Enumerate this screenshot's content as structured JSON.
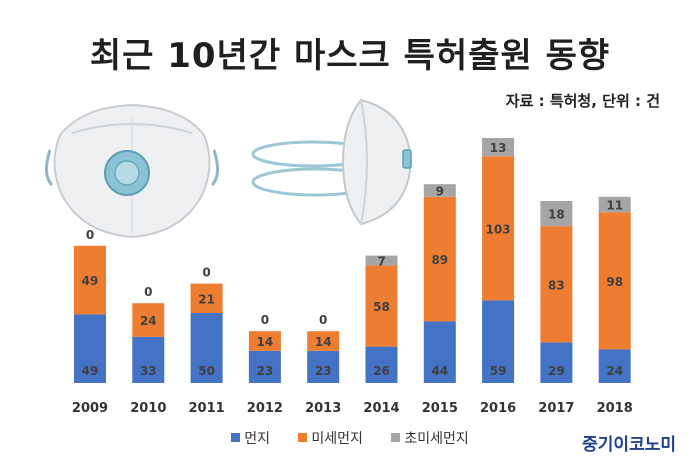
{
  "header": {
    "title": "최근 10년간 마스크 특허출원 동향",
    "source": "자료 : 특허청, 단위 : 건"
  },
  "brand": "중기이코노미",
  "chart_data": {
    "type": "bar",
    "stacked": true,
    "categories": [
      "2009",
      "2010",
      "2011",
      "2012",
      "2013",
      "2014",
      "2015",
      "2016",
      "2017",
      "2018"
    ],
    "series": [
      {
        "name": "먼지",
        "color": "#4472c4",
        "values": [
          49,
          33,
          50,
          23,
          23,
          26,
          44,
          59,
          29,
          24
        ]
      },
      {
        "name": "미세먼지",
        "color": "#ed7d31",
        "values": [
          49,
          24,
          21,
          14,
          14,
          58,
          89,
          103,
          83,
          98
        ]
      },
      {
        "name": "초미세먼지",
        "color": "#a5a5a5",
        "values": [
          0,
          0,
          0,
          0,
          0,
          7,
          9,
          13,
          18,
          11
        ]
      }
    ],
    "legend_position": "bottom",
    "grid": false,
    "data_labels": true
  }
}
